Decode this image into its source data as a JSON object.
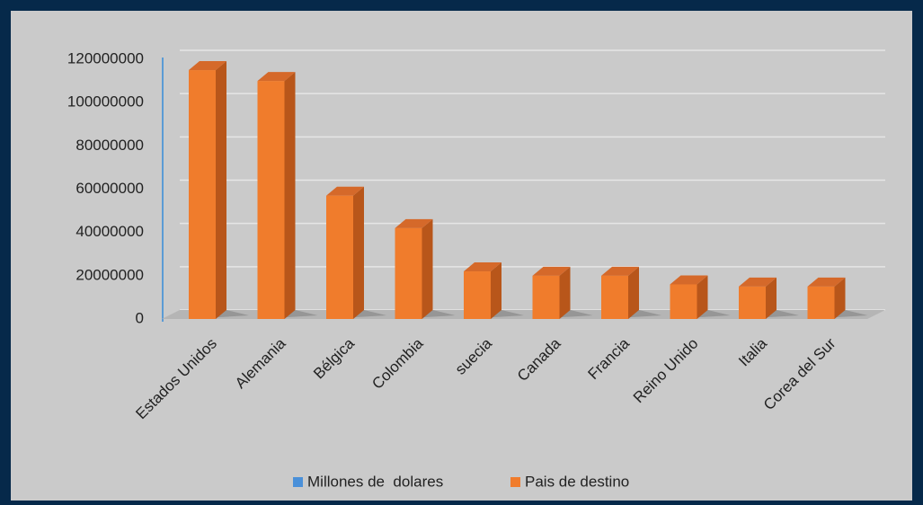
{
  "chart_data": {
    "type": "bar3d",
    "categories": [
      "Estados Unidos",
      "Alemania",
      "Bélgica",
      "Colombia",
      "suecia",
      "Canada",
      "Francia",
      "Reino Unido",
      "Italia",
      "Corea del Sur"
    ],
    "series": [
      {
        "name": "Pais de destino",
        "color": "#f07c2c",
        "values": [
          115000000,
          110000000,
          57000000,
          42000000,
          22000000,
          20000000,
          20000000,
          16000000,
          15000000,
          15000000
        ]
      }
    ],
    "legend": [
      {
        "name": "Millones de  dolares",
        "color": "#4a90d9"
      },
      {
        "name": "Pais de destino",
        "color": "#f07c2c"
      }
    ],
    "ylim": [
      0,
      120000000
    ],
    "yticks": [
      0,
      20000000,
      40000000,
      60000000,
      80000000,
      100000000,
      120000000
    ],
    "grid": true
  }
}
